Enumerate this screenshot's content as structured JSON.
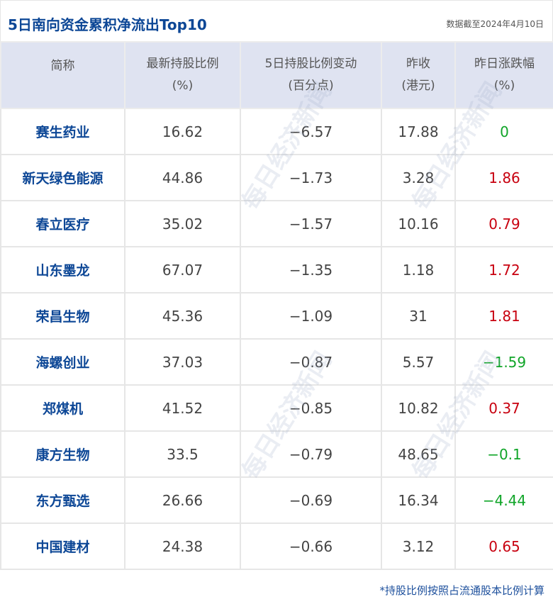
{
  "header": {
    "title": "5日南向资金累积净流出Top10",
    "date": "数据截至2024年4月10日"
  },
  "columns": [
    {
      "line1": "简称",
      "line2": ""
    },
    {
      "line1": "最新持股比例",
      "line2": "(%)"
    },
    {
      "line1": "5日持股比例变动",
      "line2": "(百分点)"
    },
    {
      "line1": "昨收",
      "line2": "(港元)"
    },
    {
      "line1": "昨日涨跌幅",
      "line2": "(%)"
    }
  ],
  "rows": [
    {
      "name": "赛生药业",
      "ratio": "16.62",
      "change": "−6.57",
      "close": "17.88",
      "pct": "0",
      "dir": "flat"
    },
    {
      "name": "新天绿色能源",
      "ratio": "44.86",
      "change": "−1.73",
      "close": "3.28",
      "pct": "1.86",
      "dir": "up"
    },
    {
      "name": "春立医疗",
      "ratio": "35.02",
      "change": "−1.57",
      "close": "10.16",
      "pct": "0.79",
      "dir": "up"
    },
    {
      "name": "山东墨龙",
      "ratio": "67.07",
      "change": "−1.35",
      "close": "1.18",
      "pct": "1.72",
      "dir": "up"
    },
    {
      "name": "荣昌生物",
      "ratio": "45.36",
      "change": "−1.09",
      "close": "31",
      "pct": "1.81",
      "dir": "up"
    },
    {
      "name": "海螺创业",
      "ratio": "37.03",
      "change": "−0.87",
      "close": "5.57",
      "pct": "−1.59",
      "dir": "down"
    },
    {
      "name": "郑煤机",
      "ratio": "41.52",
      "change": "−0.85",
      "close": "10.82",
      "pct": "0.37",
      "dir": "up"
    },
    {
      "name": "康方生物",
      "ratio": "33.5",
      "change": "−0.79",
      "close": "48.65",
      "pct": "−0.1",
      "dir": "down"
    },
    {
      "name": "东方甄选",
      "ratio": "26.66",
      "change": "−0.69",
      "close": "16.34",
      "pct": "−4.44",
      "dir": "down"
    },
    {
      "name": "中国建材",
      "ratio": "24.38",
      "change": "−0.66",
      "close": "3.12",
      "pct": "0.65",
      "dir": "up"
    }
  ],
  "colors": {
    "title": "#0d4796",
    "up": "#c8000f",
    "down": "#10a528",
    "header_bg": "#dfe3f1"
  },
  "watermark": "每日经济新闻",
  "footer": "*持股比例按照占流通股本比例计算"
}
